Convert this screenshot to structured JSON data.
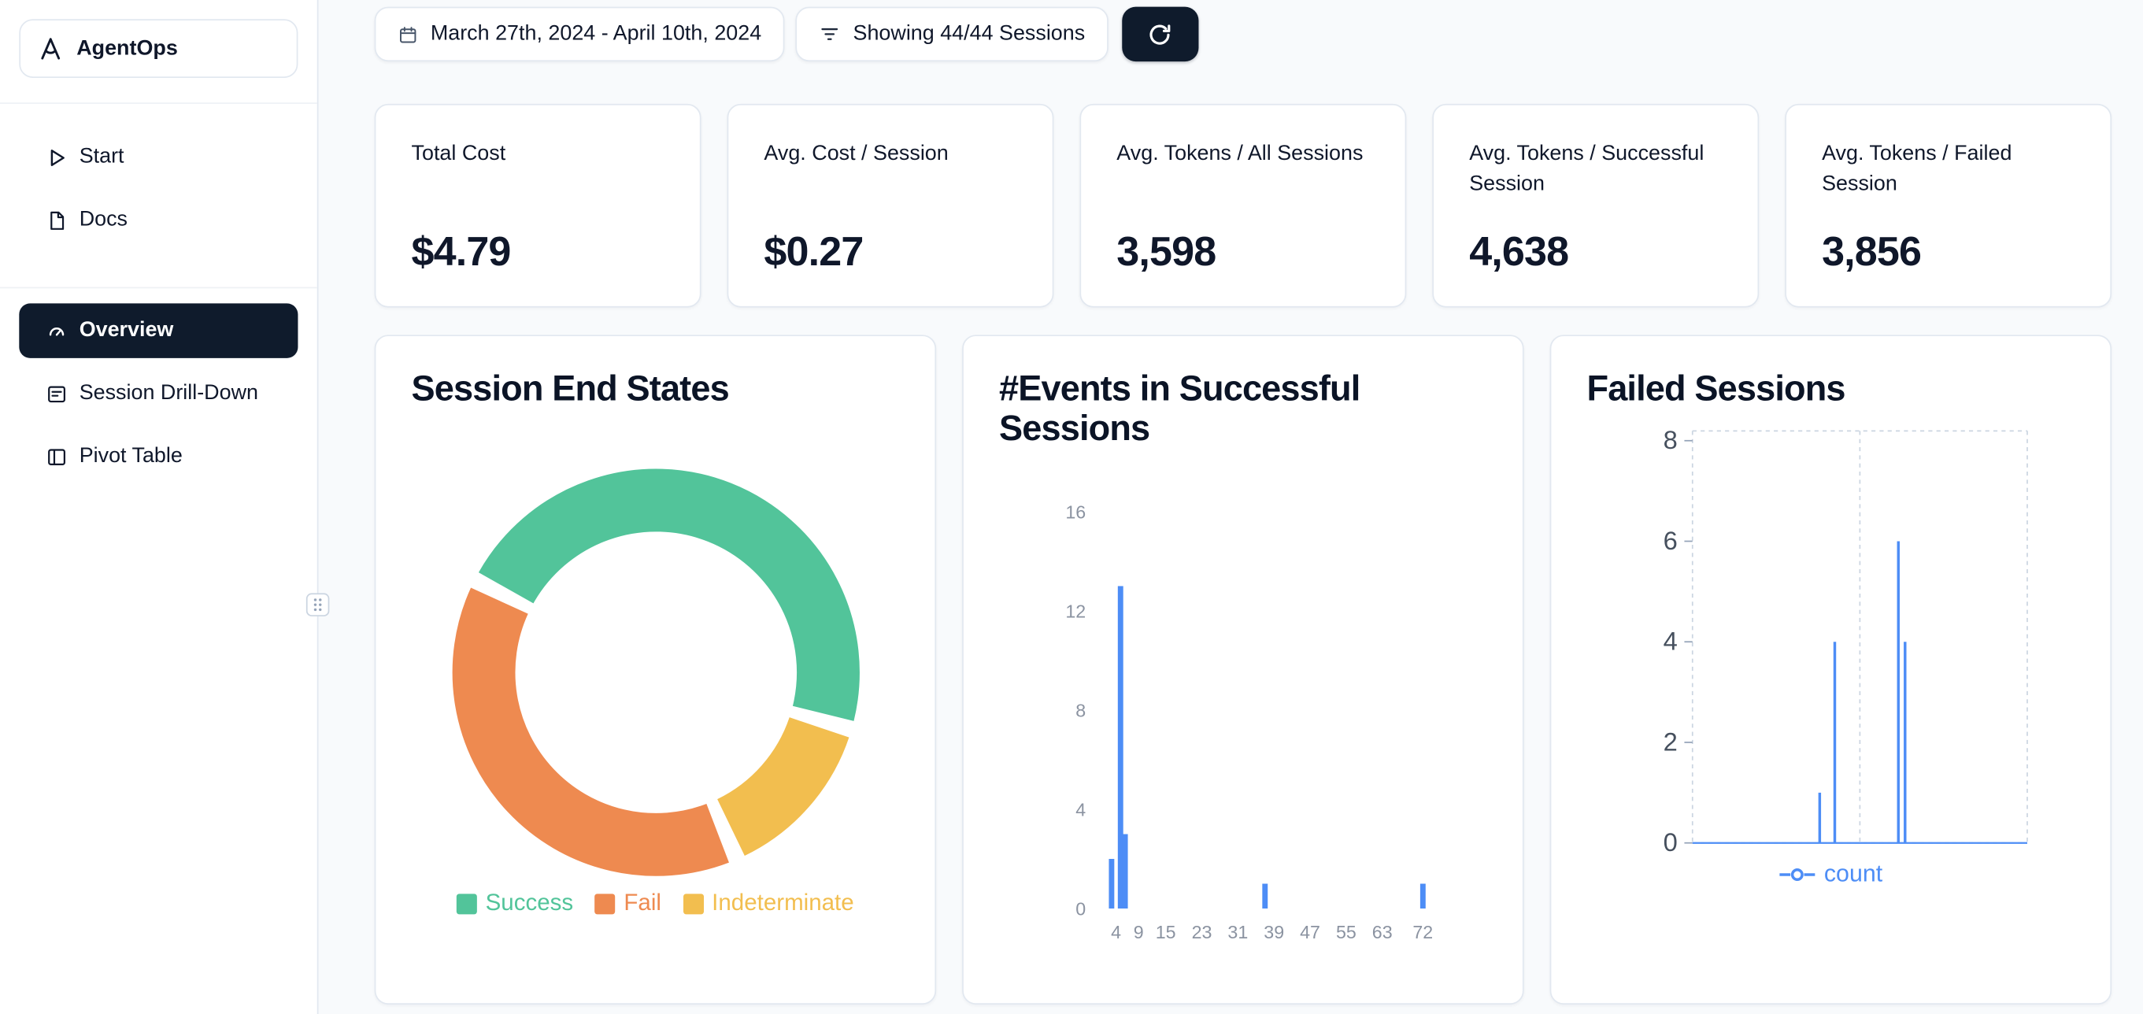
{
  "colors": {
    "background": "#f8fafc",
    "card_border": "#e2e8f0",
    "accent_dark": "#0f1b2c",
    "success_green": "#52c49a",
    "fail_orange": "#ee8a50",
    "indeterminate_yellow": "#f2be4f",
    "chart_blue": "#4d8df6"
  },
  "sidebar": {
    "logo_label": "AgentOps",
    "logo_icon": "agentops-logo-icon",
    "links": [
      {
        "label": "Start",
        "icon": "play-icon"
      },
      {
        "label": "Docs",
        "icon": "document-icon"
      }
    ],
    "nav": [
      {
        "label": "Overview",
        "icon": "gauge-icon",
        "active": true
      },
      {
        "label": "Session Drill-Down",
        "icon": "session-list-icon",
        "active": false
      },
      {
        "label": "Pivot Table",
        "icon": "pivot-table-icon",
        "active": false
      }
    ],
    "drag_handle_icon": "grip-dots-icon"
  },
  "topbar": {
    "date_range": "March 27th, 2024 - April 10th, 2024",
    "date_icon": "calendar-icon",
    "sessions_filter": "Showing 44/44 Sessions",
    "filter_icon": "filter-icon",
    "refresh_icon": "refresh-icon"
  },
  "stats": [
    {
      "label": "Total Cost",
      "value": "$4.79"
    },
    {
      "label": "Avg. Cost / Session",
      "value": "$0.27"
    },
    {
      "label": "Avg. Tokens / All Sessions",
      "value": "3,598"
    },
    {
      "label": "Avg. Tokens / Successful Session",
      "value": "4,638"
    },
    {
      "label": "Avg. Tokens / Failed Session",
      "value": "3,856"
    }
  ],
  "chart_data": [
    {
      "type": "pie",
      "title": "Session End States",
      "labels": [
        "Success",
        "Fail",
        "Indeterminate"
      ],
      "values_pct": [
        47,
        39,
        14
      ],
      "colors": [
        "#52c49a",
        "#ee8a50",
        "#f2be4f"
      ],
      "legend_position": "bottom"
    },
    {
      "type": "bar",
      "title": "#Events in Successful Sessions",
      "x_ticks": [
        4,
        9,
        15,
        23,
        31,
        39,
        47,
        55,
        63,
        72
      ],
      "y_ticks": [
        0,
        4,
        8,
        12,
        16
      ],
      "bars": [
        {
          "x": 3,
          "count": 2
        },
        {
          "x": 5,
          "count": 13
        },
        {
          "x": 6,
          "count": 3
        },
        {
          "x": 37,
          "count": 1
        },
        {
          "x": 72,
          "count": 1
        }
      ],
      "xlim": [
        0,
        76
      ],
      "ylim": [
        0,
        16
      ],
      "bar_color": "#4d8df6",
      "grid": "off"
    },
    {
      "type": "line",
      "title": "Failed Sessions",
      "legend": "count",
      "y_ticks": [
        0,
        2,
        4,
        6,
        8
      ],
      "ylim": [
        0,
        8.2
      ],
      "grid": "dashed",
      "spikes": [
        {
          "x_frac": 0.38,
          "y": 1
        },
        {
          "x_frac": 0.425,
          "y": 4
        },
        {
          "x_frac": 0.615,
          "y": 6
        },
        {
          "x_frac": 0.635,
          "y": 4
        }
      ],
      "line_color": "#4d8df6",
      "legend_position": "bottom"
    }
  ]
}
